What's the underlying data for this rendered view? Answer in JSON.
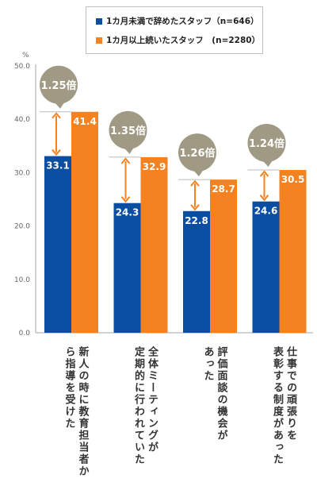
{
  "chart_data": {
    "type": "bar",
    "title": "",
    "unit_label": "%",
    "ylim": [
      0,
      50
    ],
    "yticks": [
      "0.0",
      "10.0",
      "20.0",
      "30.0",
      "40.0",
      "50.0"
    ],
    "categories": [
      "新人の時に教育担当者から指導を受けた",
      "全体ミーティングが定期的に行われていた",
      "評価面談の機会があった",
      "仕事での頑張りを表彰する制度があった"
    ],
    "category_lines": [
      [
        "新人の時に教育担当者か",
        "ら指導を受けた"
      ],
      [
        "全体ミーティングが",
        "定期的に行われていた"
      ],
      [
        "評価面談の機会が",
        "あった"
      ],
      [
        "仕事での頑張りを",
        "表彰する制度があった"
      ]
    ],
    "series": [
      {
        "name": "1カ月未満で辞めたスタッフ（n=646）",
        "color": "#0a4ea2",
        "values": [
          33.1,
          24.3,
          22.8,
          24.6
        ]
      },
      {
        "name": "1カ月以上続いたスタッフ　(n=2280）",
        "color": "#f58220",
        "values": [
          41.4,
          32.9,
          28.7,
          30.5
        ]
      }
    ],
    "ratios": [
      "1.25倍",
      "1.35倍",
      "1.26倍",
      "1.24倍"
    ],
    "legend_position": "top-center",
    "grid": false
  },
  "colors": {
    "bubble": "#a09a84",
    "arrow": "#f58220",
    "axis_text": "#666666"
  }
}
